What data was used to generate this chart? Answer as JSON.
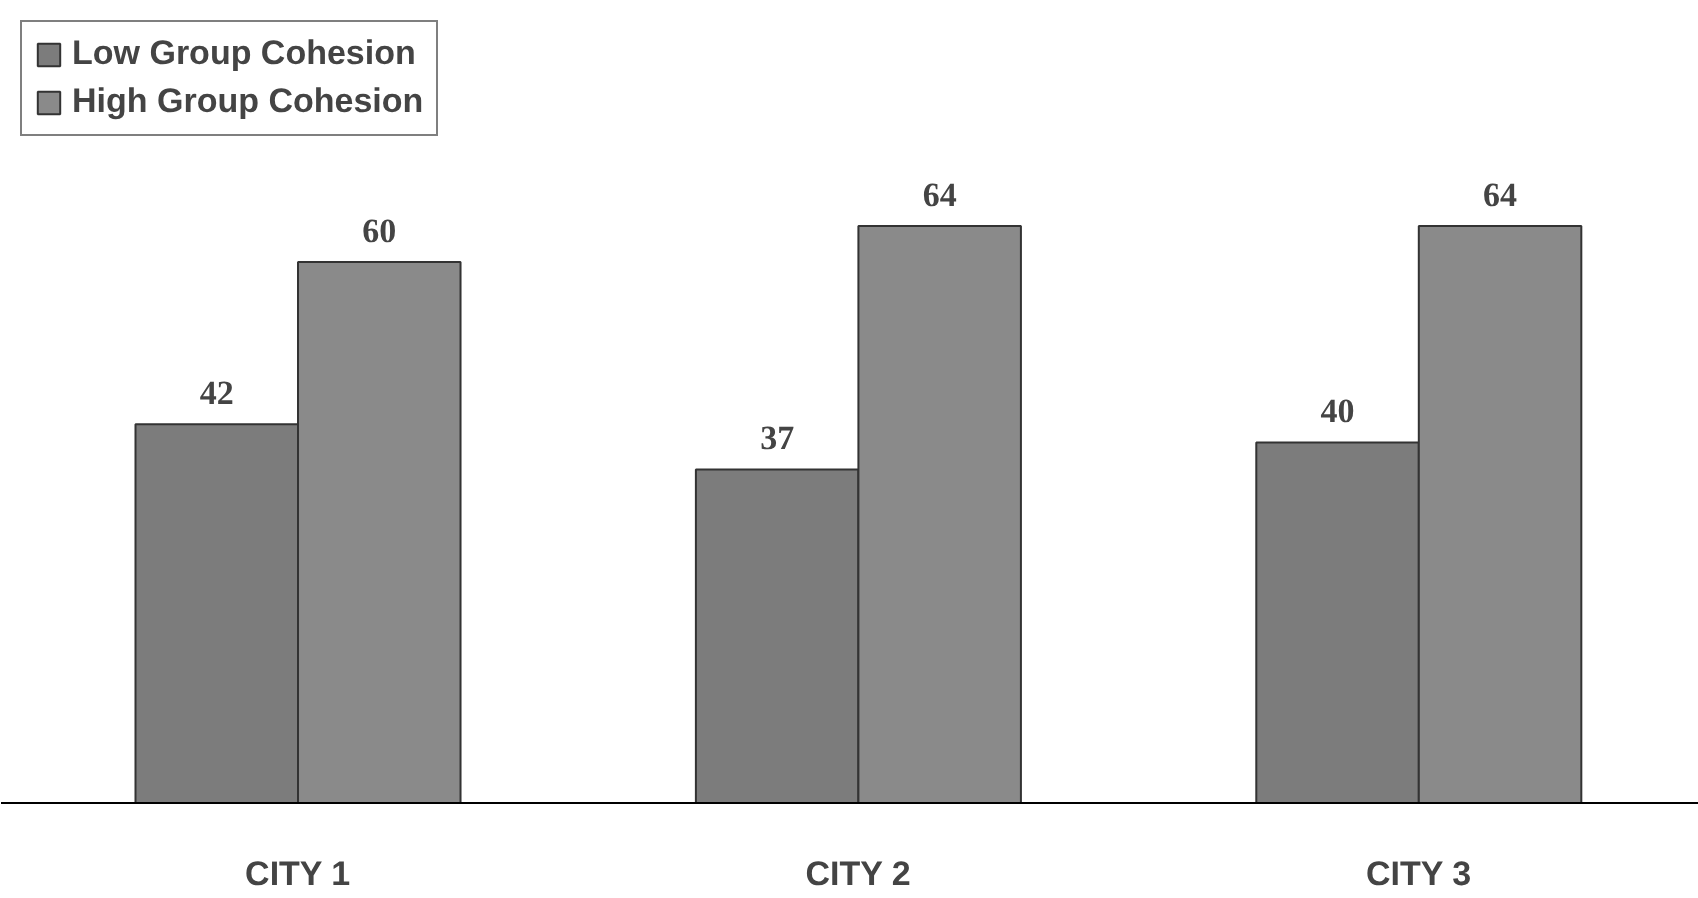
{
  "chart_data": {
    "type": "bar",
    "categories": [
      "CITY 1",
      "CITY 2",
      "CITY 3"
    ],
    "series": [
      {
        "name": "Low Group Cohesion",
        "color": "#7c7c7c",
        "values": [
          42,
          37,
          40
        ]
      },
      {
        "name": "High Group Cohesion",
        "color": "#8a8a8a",
        "values": [
          60,
          64,
          64
        ]
      }
    ],
    "data_labels": true,
    "legend": "top left",
    "grid": false
  }
}
